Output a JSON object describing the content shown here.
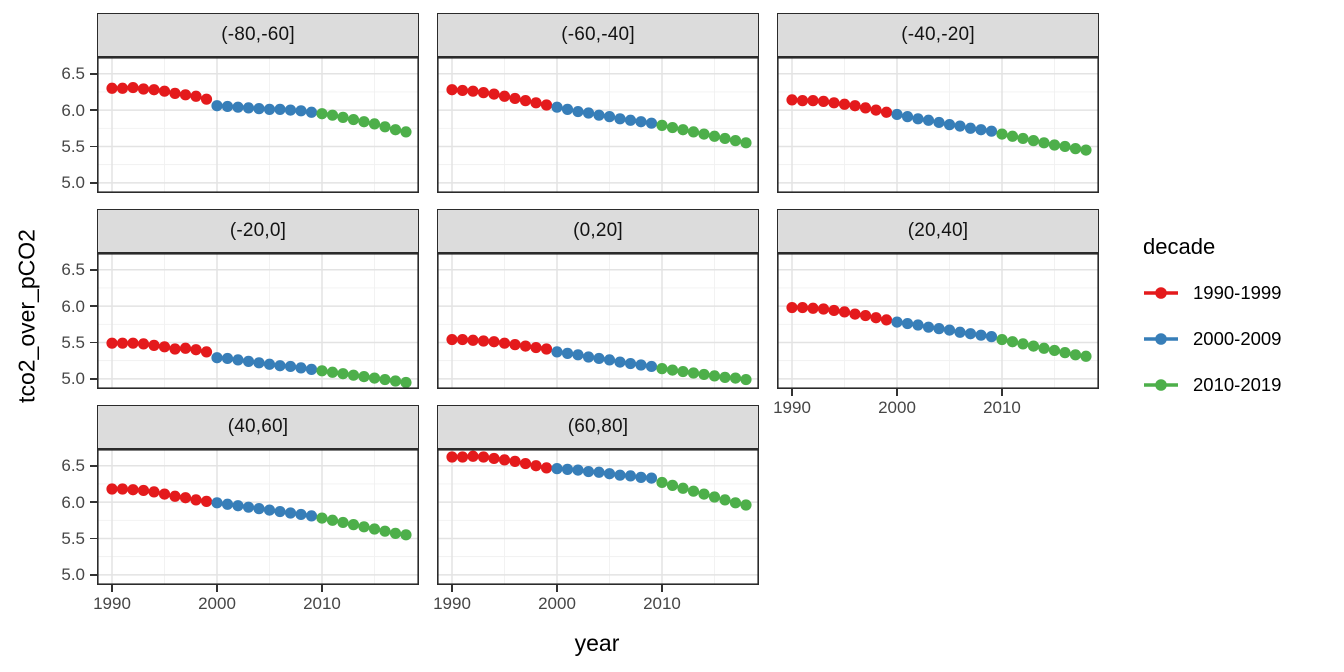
{
  "chart_data": {
    "type": "scatter",
    "title": "",
    "xlabel": "year",
    "ylabel": "tco2_over_pCO2",
    "grid": true,
    "legend": {
      "title": "decade",
      "position": "right"
    },
    "x": [
      1990,
      1991,
      1992,
      1993,
      1994,
      1995,
      1996,
      1997,
      1998,
      1999,
      2000,
      2001,
      2002,
      2003,
      2004,
      2005,
      2006,
      2007,
      2008,
      2009,
      2010,
      2011,
      2012,
      2013,
      2014,
      2015,
      2016,
      2017,
      2018
    ],
    "x_ticks": [
      "1990",
      "2000",
      "2010"
    ],
    "x_tick_values": [
      1990,
      2000,
      2010
    ],
    "y_ticks": [
      "5.0",
      "5.5",
      "6.0",
      "6.5"
    ],
    "y_tick_values": [
      5.0,
      5.5,
      6.0,
      6.5
    ],
    "x_domain": [
      1988.57,
      2019.24
    ],
    "y_domain": [
      4.86,
      6.73
    ],
    "series": [
      {
        "name": "1990-1999",
        "color": "#E41A1C",
        "start_year": 1990,
        "end_year": 1999
      },
      {
        "name": "2000-2009",
        "color": "#377EB8",
        "start_year": 2000,
        "end_year": 2009
      },
      {
        "name": "2010-2019",
        "color": "#4DAF4A",
        "start_year": 2010,
        "end_year": 2018
      }
    ],
    "facets": [
      {
        "label": "(-80,-60]",
        "values": [
          6.3,
          6.3,
          6.31,
          6.29,
          6.28,
          6.26,
          6.23,
          6.21,
          6.19,
          6.15,
          6.06,
          6.05,
          6.04,
          6.03,
          6.02,
          6.01,
          6.01,
          6.0,
          5.99,
          5.97,
          5.95,
          5.93,
          5.9,
          5.87,
          5.84,
          5.81,
          5.77,
          5.73,
          5.7
        ]
      },
      {
        "label": "(-60,-40]",
        "values": [
          6.28,
          6.27,
          6.26,
          6.24,
          6.22,
          6.19,
          6.16,
          6.13,
          6.1,
          6.07,
          6.04,
          6.01,
          5.98,
          5.96,
          5.93,
          5.91,
          5.88,
          5.86,
          5.84,
          5.82,
          5.79,
          5.76,
          5.73,
          5.7,
          5.67,
          5.64,
          5.61,
          5.58,
          5.55
        ]
      },
      {
        "label": "(-40,-20]",
        "values": [
          6.14,
          6.13,
          6.13,
          6.12,
          6.1,
          6.08,
          6.06,
          6.03,
          6.0,
          5.97,
          5.94,
          5.91,
          5.88,
          5.86,
          5.83,
          5.8,
          5.78,
          5.75,
          5.73,
          5.71,
          5.67,
          5.64,
          5.61,
          5.58,
          5.55,
          5.52,
          5.5,
          5.47,
          5.45
        ]
      },
      {
        "label": "(-20,0]",
        "values": [
          5.49,
          5.49,
          5.49,
          5.48,
          5.46,
          5.44,
          5.41,
          5.42,
          5.4,
          5.37,
          5.29,
          5.28,
          5.26,
          5.24,
          5.22,
          5.2,
          5.18,
          5.17,
          5.15,
          5.13,
          5.11,
          5.09,
          5.07,
          5.05,
          5.03,
          5.01,
          4.99,
          4.97,
          4.95
        ]
      },
      {
        "label": "(0,20]",
        "values": [
          5.54,
          5.54,
          5.53,
          5.52,
          5.51,
          5.49,
          5.47,
          5.45,
          5.43,
          5.41,
          5.37,
          5.35,
          5.33,
          5.3,
          5.28,
          5.26,
          5.23,
          5.21,
          5.19,
          5.17,
          5.14,
          5.12,
          5.1,
          5.08,
          5.06,
          5.04,
          5.02,
          5.01,
          4.99
        ]
      },
      {
        "label": "(20,40]",
        "values": [
          5.98,
          5.98,
          5.97,
          5.96,
          5.94,
          5.92,
          5.89,
          5.87,
          5.84,
          5.81,
          5.78,
          5.76,
          5.74,
          5.71,
          5.69,
          5.67,
          5.64,
          5.62,
          5.6,
          5.58,
          5.54,
          5.51,
          5.48,
          5.45,
          5.42,
          5.39,
          5.36,
          5.33,
          5.31
        ]
      },
      {
        "label": "(40,60]",
        "values": [
          6.18,
          6.18,
          6.17,
          6.16,
          6.14,
          6.11,
          6.08,
          6.06,
          6.03,
          6.01,
          5.99,
          5.97,
          5.95,
          5.93,
          5.91,
          5.89,
          5.87,
          5.85,
          5.83,
          5.81,
          5.78,
          5.75,
          5.72,
          5.69,
          5.66,
          5.63,
          5.6,
          5.57,
          5.55
        ]
      },
      {
        "label": "(60,80]",
        "values": [
          6.62,
          6.62,
          6.63,
          6.62,
          6.6,
          6.58,
          6.56,
          6.53,
          6.5,
          6.47,
          6.46,
          6.45,
          6.44,
          6.42,
          6.41,
          6.39,
          6.37,
          6.36,
          6.34,
          6.33,
          6.27,
          6.23,
          6.19,
          6.15,
          6.11,
          6.07,
          6.03,
          5.99,
          5.96
        ]
      }
    ]
  }
}
